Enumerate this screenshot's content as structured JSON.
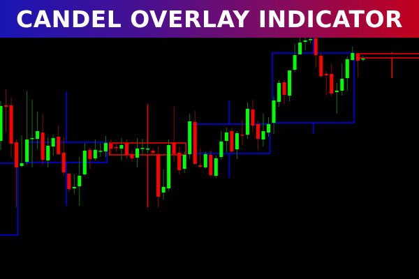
{
  "banner": {
    "title": "CANDEL OVERLAY INDICATOR"
  },
  "colors": {
    "bull_body": "#00ff00",
    "bear_body": "#ff0000",
    "bull_wick": "#0b7a0b",
    "bear_wick": "#8a0a0a",
    "overlay_bull": "#0000ff",
    "overlay_bear": "#ff0000",
    "background": "#000000"
  },
  "chart_data": {
    "type": "candlestick",
    "title": "",
    "grid": false,
    "axes_visible": false,
    "candle_fields": [
      "open",
      "high",
      "low",
      "close"
    ],
    "candles": [
      [
        198,
        255,
        185,
        248
      ],
      [
        249,
        272,
        211,
        247
      ],
      [
        249,
        260,
        174,
        194
      ],
      [
        196,
        200,
        103,
        160
      ],
      [
        162,
        206,
        160,
        166
      ],
      [
        168,
        269,
        164,
        200
      ],
      [
        201,
        257,
        160,
        202
      ],
      [
        201,
        240,
        187,
        212
      ],
      [
        210,
        237,
        163,
        171
      ],
      [
        170,
        203,
        160,
        191
      ],
      [
        190,
        207,
        177,
        202
      ],
      [
        204,
        220,
        178,
        179
      ],
      [
        181,
        203,
        148,
        153
      ],
      [
        151,
        151,
        125,
        129
      ],
      [
        130,
        150,
        122,
        132
      ],
      [
        133,
        175,
        105,
        148
      ],
      [
        150,
        195,
        148,
        184
      ],
      [
        185,
        188,
        158,
        172
      ],
      [
        173,
        200,
        170,
        185
      ],
      [
        183,
        195,
        175,
        184
      ],
      [
        183,
        205,
        175,
        195
      ],
      [
        194,
        200,
        180,
        187
      ],
      [
        189,
        194,
        182,
        188
      ],
      [
        187,
        202,
        170,
        192
      ],
      [
        195,
        200,
        172,
        178
      ],
      [
        179,
        185,
        168,
        173
      ],
      [
        174,
        202,
        160,
        187
      ],
      [
        187,
        201,
        178,
        188
      ],
      [
        186,
        195,
        180,
        187
      ],
      [
        184,
        188,
        178,
        181
      ],
      [
        179,
        190,
        103,
        118
      ],
      [
        124,
        157,
        114,
        132
      ],
      [
        130,
        200,
        126,
        192
      ],
      [
        196,
        247,
        168,
        179
      ],
      [
        181,
        190,
        150,
        156
      ],
      [
        158,
        182,
        152,
        178
      ],
      [
        179,
        237,
        172,
        226
      ],
      [
        225,
        241,
        165,
        165
      ],
      [
        163,
        187,
        159,
        161
      ],
      [
        160,
        182,
        158,
        179
      ],
      [
        178,
        185,
        146,
        149
      ],
      [
        148,
        177,
        145,
        173
      ],
      [
        175,
        212,
        171,
        197
      ],
      [
        198,
        217,
        182,
        210
      ],
      [
        212,
        217,
        180,
        183
      ],
      [
        186,
        212,
        172,
        209
      ],
      [
        207,
        228,
        192,
        206
      ],
      [
        207,
        253,
        201,
        244
      ],
      [
        243,
        257,
        210,
        220
      ],
      [
        222,
        226,
        185,
        201
      ],
      [
        200,
        237,
        190,
        212
      ],
      [
        210,
        232,
        204,
        222
      ],
      [
        224,
        262,
        208,
        256
      ],
      [
        254,
        285,
        247,
        281
      ],
      [
        282,
        285,
        251,
        264
      ],
      [
        263,
        299,
        255,
        299
      ],
      [
        300,
        337,
        297,
        321
      ],
      [
        322,
        350,
        322,
        339
      ],
      [
        340,
        355,
        328,
        342
      ],
      [
        343,
        358,
        338,
        344
      ],
      [
        345,
        360,
        303,
        321
      ],
      [
        320,
        324,
        289,
        291
      ],
      [
        294,
        298,
        263,
        292
      ],
      [
        294,
        309,
        262,
        266
      ],
      [
        268,
        281,
        237,
        270
      ],
      [
        270,
        309,
        263,
        287
      ],
      [
        288,
        319,
        270,
        315
      ],
      [
        314,
        333,
        313,
        324
      ],
      [
        323,
        325,
        289,
        313
      ],
      [
        315,
        320,
        312,
        316
      ]
    ],
    "overlays": [
      {
        "direction": "bull",
        "open": 63,
        "high": 166,
        "low": 63,
        "close": 166,
        "from": -5,
        "to": 3,
        "wick": false
      },
      {
        "direction": "bull",
        "open": 167,
        "high": 269,
        "low": 105,
        "close": 196,
        "from": 5,
        "to": 20,
        "wick": true
      },
      {
        "direction": "bear",
        "open": 195,
        "high": 250,
        "low": 103,
        "close": 178,
        "from": 21,
        "to": 35,
        "wick": true
      },
      {
        "direction": "bull",
        "open": 180,
        "high": 256,
        "low": 145,
        "close": 222,
        "from": 36,
        "to": 51,
        "wick": true
      },
      {
        "direction": "bull",
        "open": 224,
        "high": 360,
        "low": 208,
        "close": 324,
        "from": 52,
        "to": 67,
        "wick": true
      },
      {
        "direction": "bear",
        "open": 323,
        "high": 325,
        "low": 288,
        "close": 317,
        "from": 68,
        "to": 81,
        "wick": true
      }
    ]
  }
}
